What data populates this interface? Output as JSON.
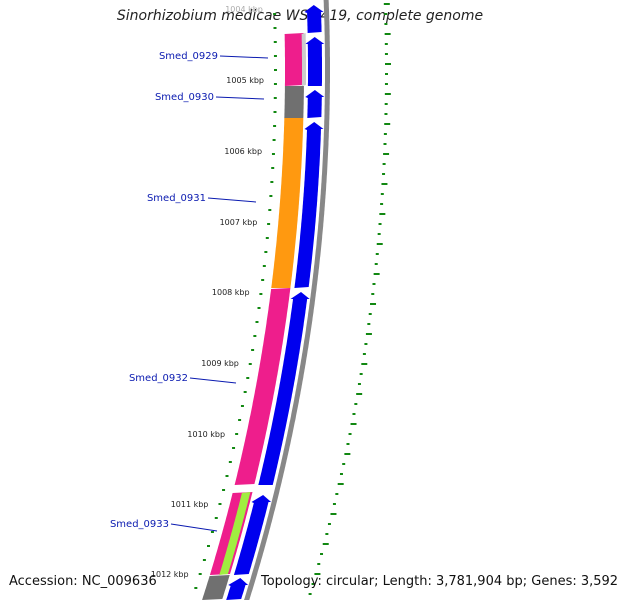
{
  "title": "Sinorhizobium medicae WSM419, complete genome",
  "footer": {
    "accession": "Accession: NC_009636",
    "topology": "Topology: circular; Length: 3,781,904 bp; Genes: 3,592"
  },
  "ruler": {
    "unit": "kbp",
    "labels": [
      "1004 kbp",
      "1005 kbp",
      "1006 kbp",
      "1007 kbp",
      "1008 kbp",
      "1009 kbp",
      "1010 kbp",
      "1011 kbp",
      "1012 kbp"
    ]
  },
  "genes": [
    {
      "name": "Smed_0929",
      "cog_color": "#ee1e8c"
    },
    {
      "name": "Smed_0930",
      "cog_color": "#707070"
    },
    {
      "name": "Smed_0931",
      "cog_color": "#ff9910"
    },
    {
      "name": "Smed_0932",
      "cog_color": "#ee1e8c"
    },
    {
      "name": "Smed_0933",
      "cog_color": "#ee1e8c"
    }
  ],
  "colors": {
    "cds_arrow": "#0000ee",
    "backbone": "#888888",
    "gc_skew": "#118811",
    "label": "#0a1ab0",
    "accent_green": "#a0ee40"
  }
}
